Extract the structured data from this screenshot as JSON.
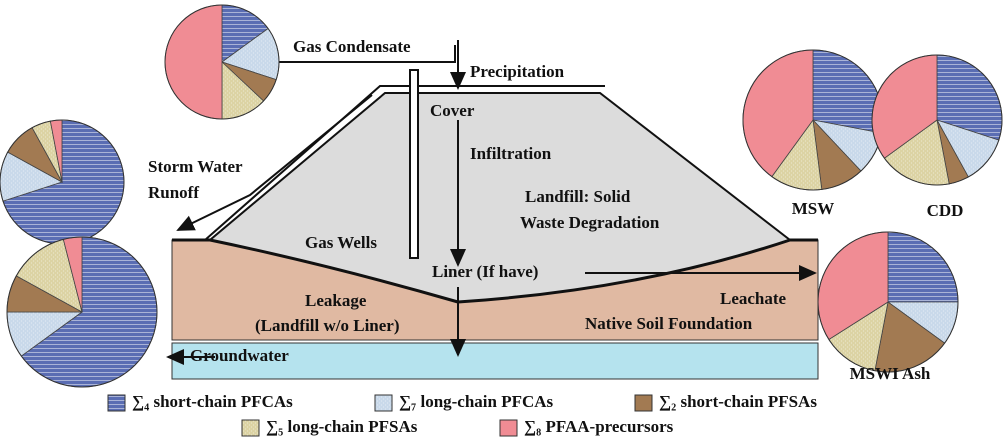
{
  "labels": {
    "gas_condensate": "Gas Condensate",
    "precipitation": "Precipitation",
    "cover": "Cover",
    "infiltration": "Infiltration",
    "landfill": [
      "Landfill: Solid",
      "Waste Degradation"
    ],
    "storm_water": [
      "Storm Water",
      "Runoff"
    ],
    "gas_wells": "Gas Wells",
    "liner": "Liner (If have)",
    "leakage": [
      "Leakage",
      "(Landfill w/o Liner)"
    ],
    "leachate": "Leachate",
    "native_soil": "Native Soil Foundation",
    "groundwater": "Groundwater"
  },
  "legend": [
    {
      "label": "∑₄ short-chain PFCAs",
      "color": "#5a6db3"
    },
    {
      "label": "∑₇ long-chain PFCAs",
      "color": "#c9d9ea"
    },
    {
      "label": "∑₂ short-chain PFSAs",
      "color": "#a27a52"
    },
    {
      "label": "∑₅ long-chain PFSAs",
      "color": "#dcd3a4"
    },
    {
      "label": "∑₈ PFAA-precursors",
      "color": "#f08c94"
    }
  ],
  "pies": [
    {
      "values": [
        15,
        15,
        7,
        13,
        50
      ]
    },
    {
      "values": [
        70,
        13,
        9,
        5,
        3
      ]
    },
    {
      "values": [
        65,
        10,
        8,
        13,
        4
      ]
    },
    {
      "label": "MSW",
      "values": [
        28,
        10,
        10,
        12,
        40
      ]
    },
    {
      "label": "CDD",
      "values": [
        30,
        12,
        5,
        18,
        35
      ]
    },
    {
      "label": "MSWI Ash",
      "values": [
        25,
        10,
        18,
        13,
        34
      ]
    }
  ]
}
